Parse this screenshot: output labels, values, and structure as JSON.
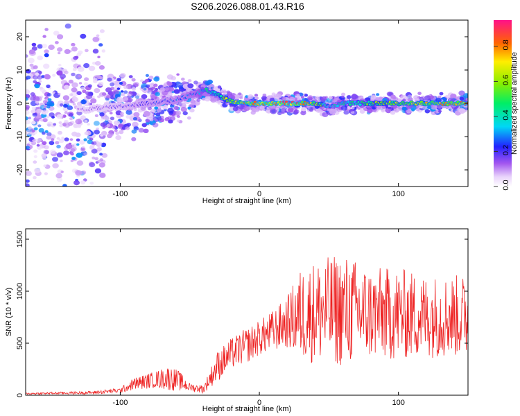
{
  "title": "S206.2026.088.01.43.R16",
  "chart_data": [
    {
      "type": "heatmap",
      "name": "spectrogram",
      "xlabel": "Height of straight line (km)",
      "ylabel": "Frequency (Hz)",
      "xlim": [
        -168,
        150
      ],
      "ylim": [
        -25,
        25
      ],
      "xticks": [
        -100,
        0,
        100
      ],
      "yticks": [
        -20,
        -10,
        0,
        10,
        20
      ],
      "colorbar": {
        "label": "Normalized spectral amplitude",
        "range": [
          0,
          0.95
        ],
        "ticks": [
          0.0,
          0.2,
          0.4,
          0.6,
          0.8
        ],
        "tick_labels": [
          "0.0",
          "0.2",
          "0.4",
          "0.6",
          "0.8"
        ]
      },
      "ridge": {
        "x": [
          -168,
          -130,
          -100,
          -80,
          -60,
          -45,
          -38,
          -30,
          -20,
          -10,
          0,
          20,
          40,
          50,
          60,
          80,
          100,
          120,
          150
        ],
        "freq": [
          -1,
          -2,
          -1,
          0,
          1,
          3,
          4,
          2.5,
          0.5,
          0,
          0,
          0,
          0,
          -1,
          0,
          0,
          0,
          0,
          0
        ],
        "amplitude": [
          0.1,
          0.15,
          0.2,
          0.25,
          0.3,
          0.35,
          0.5,
          0.6,
          0.75,
          0.85,
          0.9,
          0.95,
          0.8,
          0.4,
          0.5,
          0.6,
          0.75,
          0.8,
          0.85
        ]
      }
    },
    {
      "type": "line",
      "name": "snr",
      "xlabel": "Height of straight line (km)",
      "ylabel": "SNR (10 * v/v)",
      "xlim": [
        -168,
        150
      ],
      "ylim": [
        0,
        1600
      ],
      "xticks": [
        -100,
        0,
        100
      ],
      "yticks": [
        0,
        500,
        1000,
        1500
      ],
      "color": "#ee2222",
      "envelope": {
        "x": [
          -168,
          -120,
          -100,
          -90,
          -75,
          -65,
          -58,
          -50,
          -40,
          -30,
          -20,
          -10,
          0,
          10,
          20,
          30,
          40,
          60,
          80,
          100,
          120,
          150
        ],
        "mean": [
          15,
          25,
          45,
          110,
          150,
          165,
          140,
          75,
          60,
          280,
          400,
          470,
          550,
          620,
          700,
          780,
          800,
          820,
          780,
          780,
          760,
          760
        ],
        "spread": [
          8,
          15,
          25,
          60,
          80,
          120,
          100,
          40,
          40,
          150,
          150,
          170,
          170,
          200,
          250,
          450,
          500,
          550,
          450,
          450,
          400,
          400
        ]
      }
    }
  ]
}
